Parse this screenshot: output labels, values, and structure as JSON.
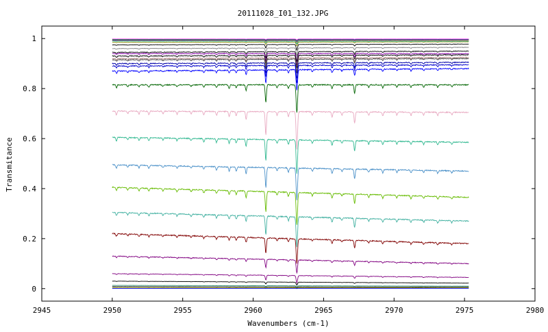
{
  "chart_data": {
    "type": "line",
    "title": "20111028_I01_132.JPG",
    "xlabel": "Wavenumbers (cm-1)",
    "ylabel": "Transmitance",
    "xlim": [
      2945,
      2980
    ],
    "ylim": [
      -0.05,
      1.05
    ],
    "xticks": [
      2945,
      2950,
      2955,
      2960,
      2965,
      2970,
      2975,
      2980
    ],
    "yticks": [
      0,
      0.2,
      0.4,
      0.6,
      0.8,
      1
    ],
    "ytick_labels": [
      "0",
      "0.2",
      "0.4",
      "0.6",
      "0.8",
      "1"
    ],
    "grid": false,
    "legend": "none",
    "x_range_of_data": [
      2950,
      2975.3
    ],
    "line_positions": [
      {
        "x": 2950.3,
        "depth": 0.015,
        "w": 0.06
      },
      {
        "x": 2951.1,
        "depth": 0.01,
        "w": 0.06
      },
      {
        "x": 2951.9,
        "depth": 0.012,
        "w": 0.06
      },
      {
        "x": 2952.6,
        "depth": 0.014,
        "w": 0.06
      },
      {
        "x": 2953.6,
        "depth": 0.01,
        "w": 0.06
      },
      {
        "x": 2954.6,
        "depth": 0.012,
        "w": 0.06
      },
      {
        "x": 2955.6,
        "depth": 0.01,
        "w": 0.06
      },
      {
        "x": 2956.5,
        "depth": 0.014,
        "w": 0.06
      },
      {
        "x": 2957.4,
        "depth": 0.016,
        "w": 0.06
      },
      {
        "x": 2958.3,
        "depth": 0.02,
        "w": 0.06
      },
      {
        "x": 2958.8,
        "depth": 0.018,
        "w": 0.06
      },
      {
        "x": 2959.5,
        "depth": 0.03,
        "w": 0.06
      },
      {
        "x": 2960.9,
        "depth": 0.095,
        "w": 0.06
      },
      {
        "x": 2961.7,
        "depth": 0.015,
        "w": 0.06
      },
      {
        "x": 2962.5,
        "depth": 0.02,
        "w": 0.06
      },
      {
        "x": 2963.1,
        "depth": 0.15,
        "w": 0.07
      },
      {
        "x": 2964.2,
        "depth": 0.014,
        "w": 0.06
      },
      {
        "x": 2965.6,
        "depth": 0.022,
        "w": 0.06
      },
      {
        "x": 2966.3,
        "depth": 0.012,
        "w": 0.06
      },
      {
        "x": 2967.2,
        "depth": 0.045,
        "w": 0.06
      },
      {
        "x": 2968.2,
        "depth": 0.014,
        "w": 0.06
      },
      {
        "x": 2969.2,
        "depth": 0.016,
        "w": 0.06
      },
      {
        "x": 2970.2,
        "depth": 0.012,
        "w": 0.06
      },
      {
        "x": 2971.2,
        "depth": 0.014,
        "w": 0.06
      },
      {
        "x": 2972.1,
        "depth": 0.012,
        "w": 0.06
      },
      {
        "x": 2973.1,
        "depth": 0.014,
        "w": 0.06
      },
      {
        "x": 2974.1,
        "depth": 0.01,
        "w": 0.06
      }
    ],
    "series": [
      {
        "color": "#ff00ff",
        "start": 0.998,
        "end": 0.998,
        "scale": 0.02
      },
      {
        "color": "#00aa00",
        "start": 0.996,
        "end": 0.996,
        "scale": 0.03
      },
      {
        "color": "#0000ff",
        "start": 0.994,
        "end": 0.995,
        "scale": 0.04
      },
      {
        "color": "#ff8800",
        "start": 0.992,
        "end": 0.993,
        "scale": 0.05
      },
      {
        "color": "#00aaaa",
        "start": 0.99,
        "end": 0.99,
        "scale": 0.07
      },
      {
        "color": "#888800",
        "start": 0.985,
        "end": 0.987,
        "scale": 0.1
      },
      {
        "color": "#000000",
        "start": 0.975,
        "end": 0.978,
        "scale": 0.15
      },
      {
        "color": "#808080",
        "start": 0.96,
        "end": 0.965,
        "scale": 0.2
      },
      {
        "color": "#000000",
        "start": 0.945,
        "end": 0.95,
        "scale": 0.25
      },
      {
        "color": "#8800aa",
        "start": 0.94,
        "end": 0.94,
        "scale": 0.3
      },
      {
        "color": "#000000",
        "start": 0.93,
        "end": 0.935,
        "scale": 0.33
      },
      {
        "color": "#b08080",
        "start": 0.92,
        "end": 0.925,
        "scale": 0.36
      },
      {
        "color": "#444444",
        "start": 0.915,
        "end": 0.92,
        "scale": 0.38
      },
      {
        "color": "#0000aa",
        "start": 0.9,
        "end": 0.905,
        "scale": 0.42
      },
      {
        "color": "#0000cc",
        "start": 0.89,
        "end": 0.895,
        "scale": 0.47
      },
      {
        "color": "#0000ff",
        "start": 0.87,
        "end": 0.88,
        "scale": 0.55
      },
      {
        "color": "#006400",
        "start": 0.815,
        "end": 0.815,
        "scale": 0.75
      },
      {
        "color": "#e8a8c0",
        "start": 0.71,
        "end": 0.705,
        "scale": 1.0
      },
      {
        "color": "#30b890",
        "start": 0.605,
        "end": 0.585,
        "scale": 0.9
      },
      {
        "color": "#4a90c8",
        "start": 0.495,
        "end": 0.47,
        "scale": 0.85
      },
      {
        "color": "#66bb00",
        "start": 0.405,
        "end": 0.365,
        "scale": 0.85
      },
      {
        "color": "#40b0a0",
        "start": 0.305,
        "end": 0.27,
        "scale": 0.8
      },
      {
        "color": "#800000",
        "start": 0.22,
        "end": 0.18,
        "scale": 0.65
      },
      {
        "color": "#800080",
        "start": 0.13,
        "end": 0.1,
        "scale": 0.35
      },
      {
        "color": "#800080",
        "start": 0.06,
        "end": 0.045,
        "scale": 0.2
      },
      {
        "color": "#000000",
        "start": 0.03,
        "end": 0.022,
        "scale": 0.08
      },
      {
        "color": "#2a8a6a",
        "start": 0.013,
        "end": 0.01,
        "scale": 0.03
      },
      {
        "color": "#000000",
        "start": 0.008,
        "end": 0.006,
        "scale": 0.02
      },
      {
        "color": "#aaaa00",
        "start": 0.004,
        "end": 0.003,
        "scale": 0.01
      },
      {
        "color": "#0000ff",
        "start": 0.001,
        "end": 0.001,
        "scale": 0.005
      }
    ]
  }
}
